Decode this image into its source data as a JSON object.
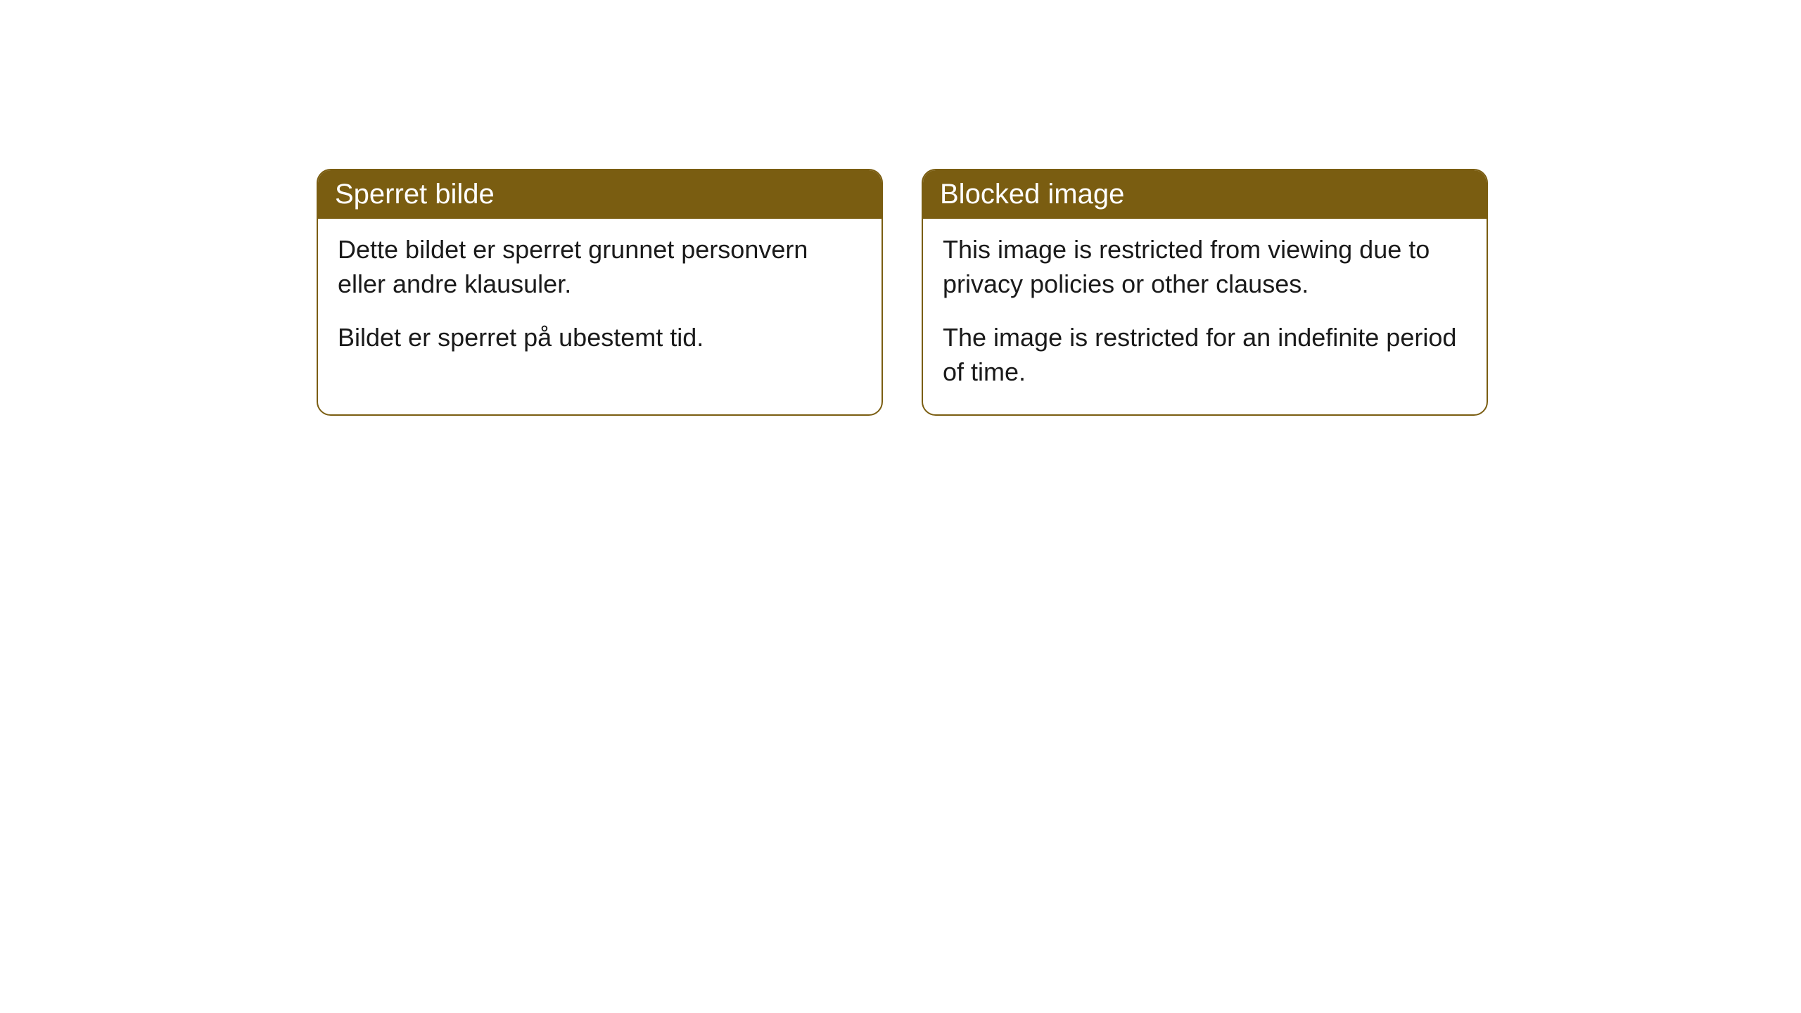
{
  "cards": {
    "left": {
      "title": "Sperret bilde",
      "paragraph1": "Dette bildet er sperret grunnet personvern eller andre klausuler.",
      "paragraph2": "Bildet er sperret på ubestemt tid."
    },
    "right": {
      "title": "Blocked image",
      "paragraph1": "This image is restricted from viewing due to privacy policies or other clauses.",
      "paragraph2": "The image is restricted for an indefinite period of time."
    }
  },
  "style": {
    "header_bg": "#7a5d11",
    "header_text_color": "#ffffff",
    "border_color": "#7a5d11",
    "body_text_color": "#1a1a1a",
    "border_radius": 20,
    "header_fontsize": 40,
    "body_fontsize": 36
  }
}
